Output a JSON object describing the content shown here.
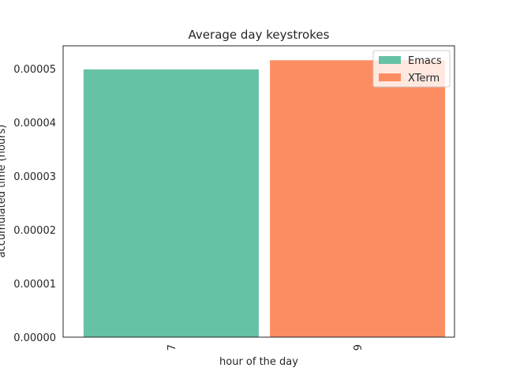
{
  "chart_data": {
    "type": "bar",
    "title": "Average day keystrokes",
    "xlabel": "hour of the day",
    "ylabel": "accumulated time (hours)",
    "categories": [
      "7",
      "9"
    ],
    "series": [
      {
        "name": "Emacs",
        "color": "#66c2a5",
        "values": [
          4.99e-05,
          null
        ]
      },
      {
        "name": "XTerm",
        "color": "#fc8d62",
        "values": [
          null,
          5.16e-05
        ]
      }
    ],
    "ylim": [
      0,
      5.43e-05
    ],
    "yticks": [
      "0.00000",
      "0.00001",
      "0.00002",
      "0.00003",
      "0.00004",
      "0.00005"
    ],
    "ytick_values": [
      0,
      1e-05,
      2e-05,
      3e-05,
      4e-05,
      5e-05
    ],
    "grid": false,
    "legend": "top-right"
  }
}
